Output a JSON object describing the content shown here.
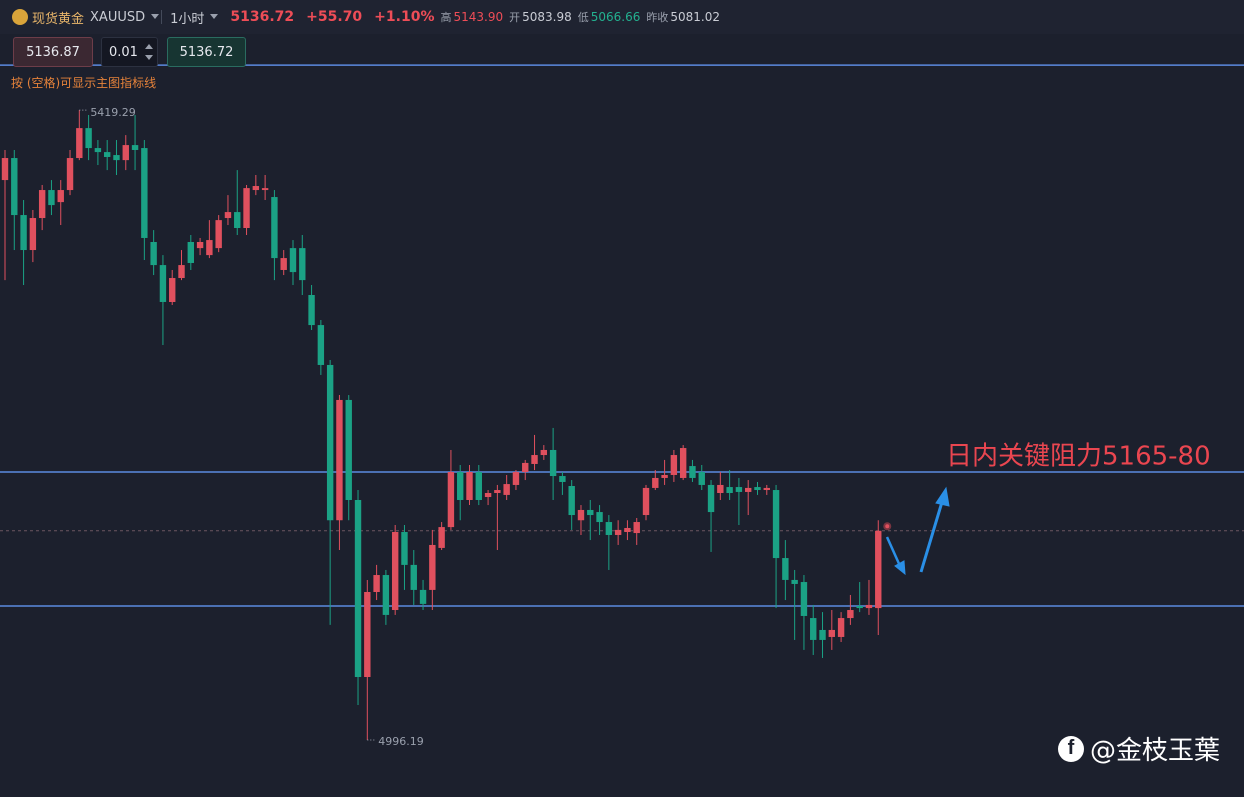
{
  "header": {
    "symbol_name": "现货黄金",
    "symbol": "XAUUSD",
    "timeframe": "1小时",
    "price": "5136.72",
    "change": "+55.70",
    "change_pct": "+1.10%",
    "high_label": "高",
    "high": "5143.90",
    "open_label": "开",
    "open": "5083.98",
    "low_label": "低",
    "low": "5066.66",
    "prev_close_label": "昨收",
    "prev_close": "5081.02"
  },
  "order_bar": {
    "sell": "5136.87",
    "quantity": "0.01",
    "buy": "5136.72"
  },
  "hint": "按 (空格)可显示主图指标线",
  "watermark": "@金枝玉葉",
  "chart_data": {
    "type": "candlestick",
    "open": [
      5372.3,
      5387.1,
      5348.8,
      5325.3,
      5346.8,
      5365.6,
      5357.5,
      5365.6,
      5387.1,
      5407.2,
      5393.8,
      5391.1,
      5389.1,
      5385.7,
      5395.8,
      5393.8,
      5330.7,
      5315.2,
      5290.4,
      5306.5,
      5330.7,
      5326.6,
      5321.9,
      5326.6,
      5346.8,
      5350.8,
      5340.1,
      5365.6,
      5365.6,
      5360.9,
      5311.9,
      5326.6,
      5326.6,
      5295.1,
      5274.9,
      5248.1,
      5143.8,
      5224.6,
      5157.4,
      5038.5,
      5095.6,
      5107.0,
      5083.5,
      5135.9,
      5113.8,
      5097.0,
      5097.0,
      5125.2,
      5139.2,
      5176.2,
      5157.4,
      5176.2,
      5159.4,
      5162.1,
      5160.8,
      5167.5,
      5176.2,
      5181.6,
      5187.6,
      5191.0,
      5173.5,
      5166.8,
      5143.8,
      5150.7,
      5149.3,
      5142.6,
      5133.9,
      5135.9,
      5135.2,
      5147.3,
      5165.5,
      5172.2,
      5174.2,
      5172.2,
      5180.2,
      5176.2,
      5167.5,
      5162.1,
      5166.1,
      5166.1,
      5162.8,
      5166.1,
      5164.1,
      5164.1,
      5118.4,
      5103.7,
      5102.3,
      5078.1,
      5070.1,
      5065.4,
      5065.4,
      5078.1,
      5086.2,
      5084.8,
      5084.8
    ],
    "high": [
      5392.5,
      5392.5,
      5358.9,
      5352.2,
      5369.0,
      5372.3,
      5372.3,
      5392.5,
      5419.29,
      5416.0,
      5399.2,
      5399.2,
      5399.2,
      5402.5,
      5416.0,
      5399.2,
      5338.7,
      5321.9,
      5311.9,
      5325.3,
      5335.4,
      5333.4,
      5345.4,
      5348.8,
      5362.2,
      5379.0,
      5369.0,
      5375.7,
      5375.7,
      5365.6,
      5325.3,
      5332.0,
      5335.4,
      5301.8,
      5278.3,
      5251.4,
      5227.9,
      5227.9,
      5164.1,
      5103.7,
      5113.8,
      5110.4,
      5140.6,
      5140.6,
      5123.8,
      5103.7,
      5137.3,
      5142.6,
      5191.0,
      5180.9,
      5180.9,
      5180.9,
      5164.1,
      5167.5,
      5174.2,
      5177.5,
      5184.3,
      5201.1,
      5194.3,
      5205.8,
      5176.2,
      5170.8,
      5154.0,
      5157.4,
      5154.0,
      5147.3,
      5143.8,
      5143.8,
      5145.3,
      5167.5,
      5177.5,
      5184.3,
      5191.0,
      5194.3,
      5184.3,
      5180.9,
      5170.8,
      5176.2,
      5177.5,
      5172.2,
      5170.8,
      5169.5,
      5167.5,
      5167.5,
      5130.5,
      5110.4,
      5107.0,
      5086.9,
      5082.1,
      5083.5,
      5082.1,
      5093.6,
      5102.3,
      5103.7,
      5143.8
    ],
    "low": [
      5305.1,
      5325.3,
      5301.8,
      5317.2,
      5338.7,
      5348.8,
      5342.1,
      5362.2,
      5385.7,
      5385.7,
      5382.4,
      5379.0,
      5375.7,
      5379.0,
      5379.0,
      5318.6,
      5308.5,
      5261.5,
      5288.4,
      5305.1,
      5311.9,
      5321.9,
      5319.9,
      5323.9,
      5342.1,
      5335.4,
      5335.4,
      5362.2,
      5358.9,
      5305.1,
      5308.5,
      5301.8,
      5295.1,
      5271.6,
      5241.4,
      5073.5,
      5123.8,
      5143.8,
      5019.7,
      4996.19,
      5090.2,
      5073.5,
      5080.2,
      5097.0,
      5086.9,
      5083.5,
      5083.5,
      5123.8,
      5137.3,
      5143.8,
      5154.0,
      5154.0,
      5154.0,
      5123.8,
      5157.4,
      5164.1,
      5170.8,
      5177.5,
      5184.3,
      5157.4,
      5160.8,
      5137.3,
      5133.9,
      5130.5,
      5133.9,
      5110.4,
      5127.2,
      5130.5,
      5127.2,
      5143.8,
      5164.1,
      5167.5,
      5169.5,
      5170.8,
      5169.5,
      5164.1,
      5122.5,
      5157.4,
      5157.4,
      5140.6,
      5147.3,
      5160.8,
      5160.8,
      5084.8,
      5090.2,
      5063.4,
      5056.7,
      5053.3,
      5051.3,
      5056.7,
      5062.0,
      5073.5,
      5082.1,
      5080.2,
      5066.7
    ],
    "close": [
      5387.1,
      5348.8,
      5325.3,
      5346.8,
      5365.6,
      5355.5,
      5365.6,
      5387.1,
      5407.2,
      5393.8,
      5391.1,
      5387.8,
      5385.7,
      5395.8,
      5392.5,
      5333.4,
      5315.2,
      5290.4,
      5306.5,
      5315.2,
      5316.6,
      5330.7,
      5332.0,
      5345.4,
      5350.8,
      5340.1,
      5366.9,
      5368.3,
      5366.9,
      5319.9,
      5319.9,
      5310.5,
      5305.1,
      5274.9,
      5248.1,
      5143.8,
      5224.6,
      5157.4,
      5038.5,
      5095.6,
      5107.0,
      5080.2,
      5135.9,
      5113.8,
      5097.0,
      5087.6,
      5127.2,
      5139.2,
      5176.2,
      5157.4,
      5176.2,
      5157.4,
      5162.1,
      5164.1,
      5168.1,
      5176.2,
      5182.3,
      5187.6,
      5191.0,
      5173.5,
      5169.5,
      5147.3,
      5150.7,
      5147.3,
      5142.6,
      5133.9,
      5137.3,
      5138.6,
      5142.6,
      5165.5,
      5172.2,
      5174.2,
      5187.6,
      5192.3,
      5172.2,
      5167.5,
      5149.3,
      5167.5,
      5162.1,
      5162.8,
      5165.5,
      5164.1,
      5165.5,
      5118.4,
      5103.7,
      5101.0,
      5079.5,
      5063.4,
      5063.4,
      5070.1,
      5078.1,
      5083.5,
      5084.8,
      5086.9,
      5136.72
    ],
    "ylim": [
      4957.9,
      5473.1
    ],
    "up_color": "#e0505e",
    "down_color": "#1ba285",
    "hlines": [
      5449.5,
      5176.2,
      5086.2
    ],
    "hline_color": "#5b8ae0",
    "annotation": "日内关键阻力5165-80",
    "annotation_color": "#ea4650"
  }
}
